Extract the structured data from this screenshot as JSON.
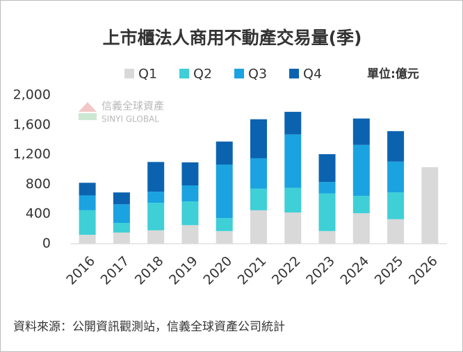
{
  "chart_data": {
    "type": "stacked_bar",
    "title": "上市櫃法人商用不動產交易量(季)",
    "unit": "單位:億元",
    "watermark": {
      "name": "信義全球資產",
      "name_en": "SINYI GLOBAL"
    },
    "source": "資料來源：公開資訊觀測站，信義全球資產公司統計",
    "categories": [
      "2016",
      "2017",
      "2018",
      "2019",
      "2020",
      "2021",
      "2022",
      "2023",
      "2024",
      "2025",
      "2026"
    ],
    "series": [
      {
        "name": "Q1",
        "color": "#d9d9d9",
        "values": [
          120,
          150,
          180,
          250,
          170,
          450,
          420,
          170,
          410,
          330,
          1030
        ]
      },
      {
        "name": "Q2",
        "color": "#3fcfd6",
        "values": [
          330,
          130,
          370,
          320,
          175,
          290,
          330,
          505,
          235,
          360,
          null
        ]
      },
      {
        "name": "Q3",
        "color": "#1aa3e0",
        "values": [
          200,
          250,
          150,
          215,
          720,
          410,
          720,
          155,
          685,
          415,
          null
        ]
      },
      {
        "name": "Q4",
        "color": "#0b63b0",
        "values": [
          170,
          160,
          400,
          310,
          310,
          525,
          305,
          375,
          355,
          410,
          null
        ]
      }
    ],
    "ylim": [
      0,
      2000
    ],
    "yticks": [
      0,
      400,
      800,
      {
        "value": 1200,
        "label": "1,200"
      },
      {
        "value": 1600,
        "label": "1,600"
      },
      {
        "value": 2000,
        "label": "2,000"
      }
    ]
  }
}
